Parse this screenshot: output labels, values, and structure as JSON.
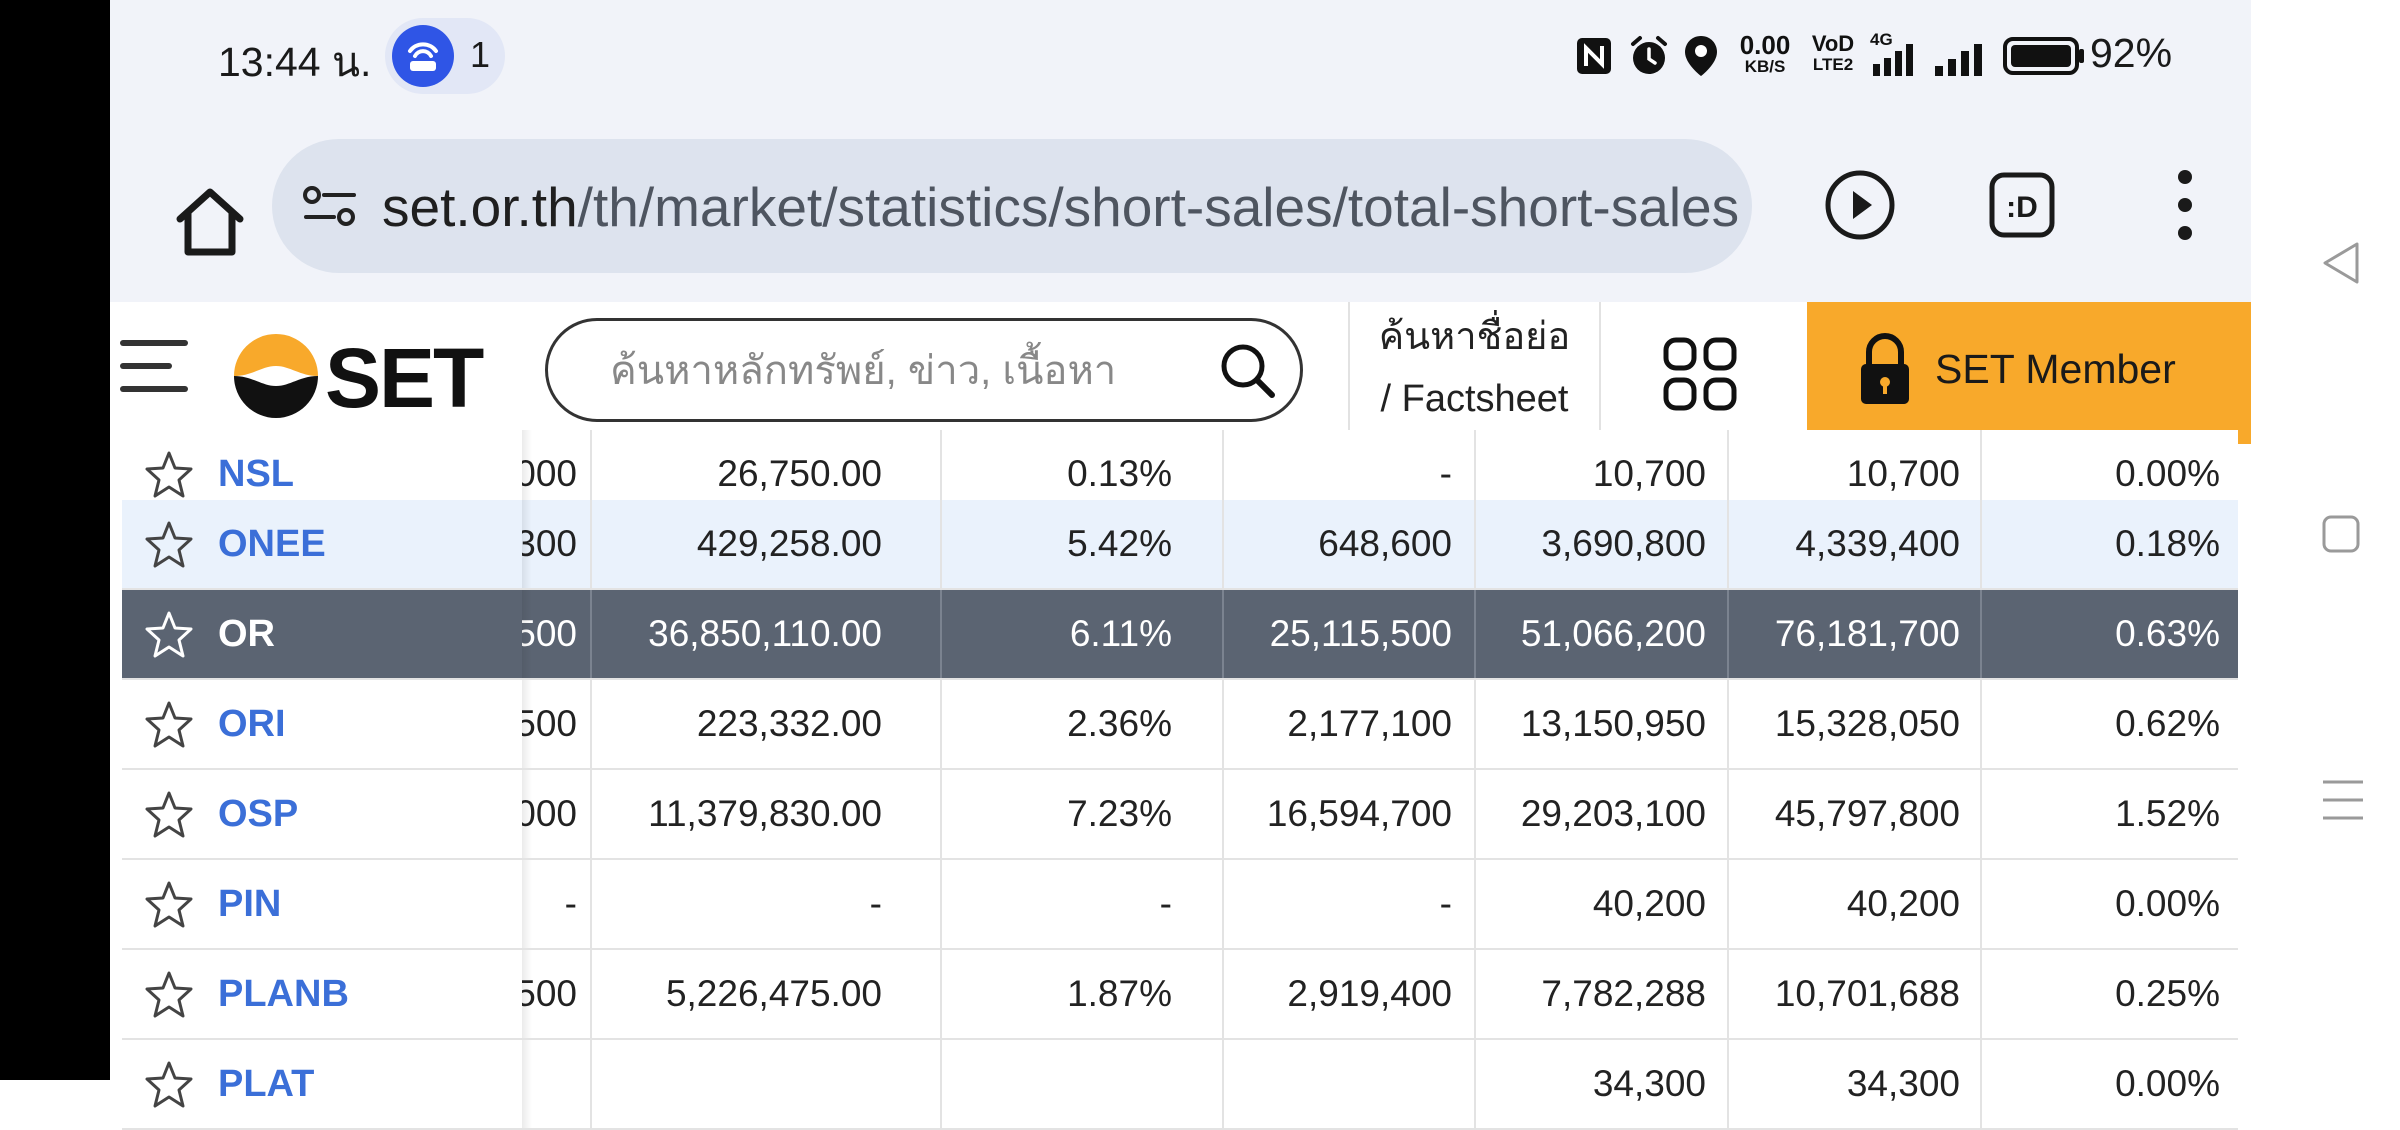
{
  "status_bar": {
    "time": "13:44 น.",
    "hotspot_count": "1",
    "net_speed_top": "0.00",
    "net_speed_bottom": "KB/S",
    "volte_top": "VoD",
    "volte_bottom": "LTE2",
    "network": "4G",
    "battery_percent": "92%"
  },
  "browser": {
    "url_host": "set.or.th",
    "url_path": "/th/market/statistics/short-sales/total-short-sales"
  },
  "site_header": {
    "search_placeholder": "ค้นหาหลักทรัพย์, ข่าว, เนื้อหา",
    "factsheet_line1": "ค้นหาชื่อย่อ",
    "factsheet_line2": "/ Factsheet",
    "member_label": "SET Member",
    "logo_text": "SET"
  },
  "table": {
    "rows": [
      {
        "symbol": "NSL",
        "c1": "000",
        "c2": "26,750.00",
        "c3": "0.13%",
        "c4": "-",
        "c5": "10,700",
        "c6": "10,700",
        "c7": "0.00%"
      },
      {
        "symbol": "ONEE",
        "c1": "300",
        "c2": "429,258.00",
        "c3": "5.42%",
        "c4": "648,600",
        "c5": "3,690,800",
        "c6": "4,339,400",
        "c7": "0.18%"
      },
      {
        "symbol": "OR",
        "c1": "500",
        "c2": "36,850,110.00",
        "c3": "6.11%",
        "c4": "25,115,500",
        "c5": "51,066,200",
        "c6": "76,181,700",
        "c7": "0.63%"
      },
      {
        "symbol": "ORI",
        "c1": "500",
        "c2": "223,332.00",
        "c3": "2.36%",
        "c4": "2,177,100",
        "c5": "13,150,950",
        "c6": "15,328,050",
        "c7": "0.62%"
      },
      {
        "symbol": "OSP",
        "c1": "000",
        "c2": "11,379,830.00",
        "c3": "7.23%",
        "c4": "16,594,700",
        "c5": "29,203,100",
        "c6": "45,797,800",
        "c7": "1.52%"
      },
      {
        "symbol": "PIN",
        "c1": "-",
        "c2": "-",
        "c3": "-",
        "c4": "-",
        "c5": "40,200",
        "c6": "40,200",
        "c7": "0.00%"
      },
      {
        "symbol": "PLANB",
        "c1": "500",
        "c2": "5,226,475.00",
        "c3": "1.87%",
        "c4": "2,919,400",
        "c5": "7,782,288",
        "c6": "10,701,688",
        "c7": "0.25%"
      },
      {
        "symbol": "PLAT",
        "c1": "",
        "c2": "",
        "c3": "",
        "c4": "",
        "c5": "34,300",
        "c6": "34,300",
        "c7": "0.00%"
      }
    ]
  },
  "colors": {
    "accent_orange": "#f8a92b",
    "symbol_blue": "#3b6fd8",
    "selected_row": "#5b6472",
    "highlight_row": "#eaf2fc"
  }
}
